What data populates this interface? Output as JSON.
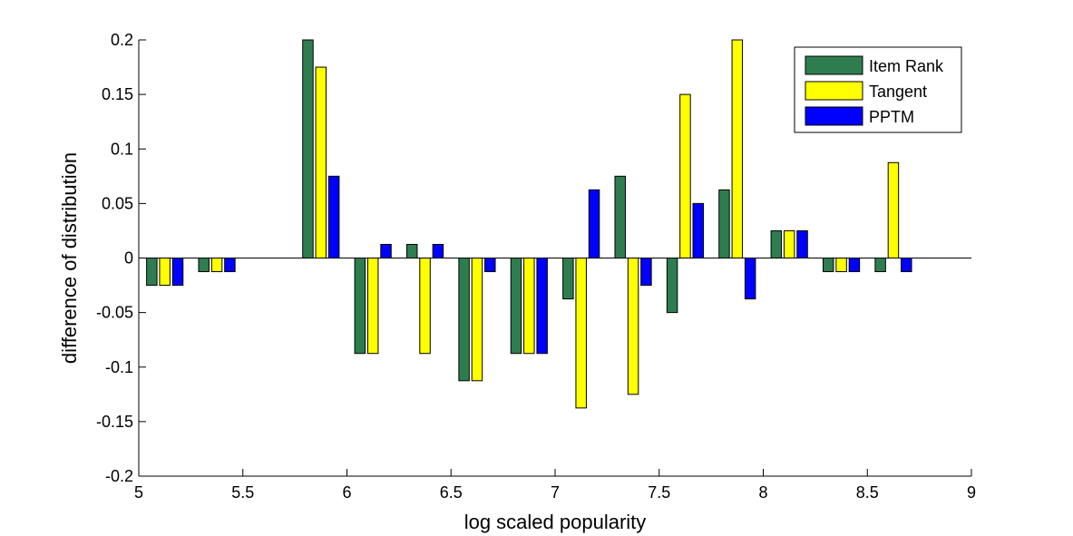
{
  "chart_data": {
    "type": "bar",
    "title": "",
    "xlabel": "log scaled popularity",
    "ylabel": "difference of distribution",
    "xlim": [
      5,
      9
    ],
    "ylim": [
      -0.2,
      0.2
    ],
    "xticks": [
      "5",
      "5.5",
      "6",
      "6.5",
      "7",
      "7.5",
      "8",
      "8.5",
      "9"
    ],
    "yticks": [
      "-0.2",
      "-0.15",
      "-0.1",
      "-0.05",
      "0",
      "0.05",
      "0.1",
      "0.15",
      "0.2"
    ],
    "grid": false,
    "legend_position": "top-right",
    "x": [
      5.125,
      5.375,
      5.625,
      5.875,
      6.125,
      6.375,
      6.625,
      6.875,
      7.125,
      7.375,
      7.625,
      7.875,
      8.125,
      8.375,
      8.625
    ],
    "series": [
      {
        "name": "Item Rank",
        "color": "#2e7d4f",
        "values": [
          -0.025,
          -0.0125,
          0,
          0.2,
          -0.0875,
          0.0125,
          -0.1125,
          -0.0875,
          -0.0375,
          0.075,
          -0.05,
          0.0625,
          0.025,
          -0.0125,
          -0.0125
        ]
      },
      {
        "name": "Tangent",
        "color": "#ffff00",
        "values": [
          -0.025,
          -0.0125,
          0,
          0.175,
          -0.0875,
          -0.0875,
          -0.1125,
          -0.0875,
          -0.1375,
          -0.125,
          0.15,
          0.2,
          0.025,
          -0.0125,
          0.0875
        ]
      },
      {
        "name": "PPTM",
        "color": "#0000ff",
        "values": [
          -0.025,
          -0.0125,
          0,
          0.075,
          0.0125,
          0.0125,
          -0.0125,
          -0.0875,
          0.0625,
          -0.025,
          0.05,
          -0.0375,
          0.025,
          -0.0125,
          -0.0125
        ]
      }
    ]
  }
}
